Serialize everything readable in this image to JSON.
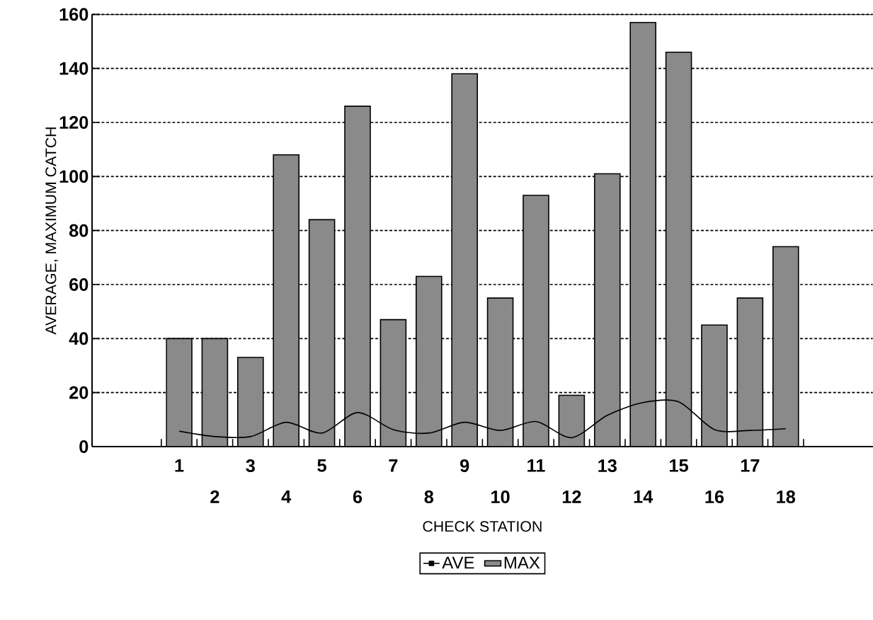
{
  "chart_data": {
    "type": "bar",
    "xlabel": "CHECK STATION",
    "ylabel": "AVERAGE, MAXIMUM CATCH",
    "categories": [
      "1",
      "2",
      "3",
      "4",
      "5",
      "6",
      "7",
      "8",
      "9",
      "10",
      "11",
      "12",
      "13",
      "14",
      "15",
      "16",
      "17",
      "18"
    ],
    "series": [
      {
        "name": "AVE",
        "type": "line",
        "color": "#000000",
        "values": [
          5.7,
          3.7,
          3.7,
          9,
          5,
          12.6,
          6.3,
          5,
          9,
          6,
          9.3,
          3.3,
          11.6,
          16.3,
          16.6,
          6.3,
          6,
          6.6
        ]
      },
      {
        "name": "MAX",
        "type": "bar",
        "color": "#8a8a8a",
        "values": [
          40,
          40,
          33,
          108,
          84,
          126,
          47,
          63,
          138,
          55,
          93,
          19,
          101,
          157,
          146,
          45,
          55,
          74
        ]
      }
    ],
    "ylim": [
      0,
      160
    ],
    "yticks": [
      0,
      20,
      40,
      60,
      80,
      100,
      120,
      140,
      160
    ],
    "grid": "y",
    "legend": "bottom"
  }
}
